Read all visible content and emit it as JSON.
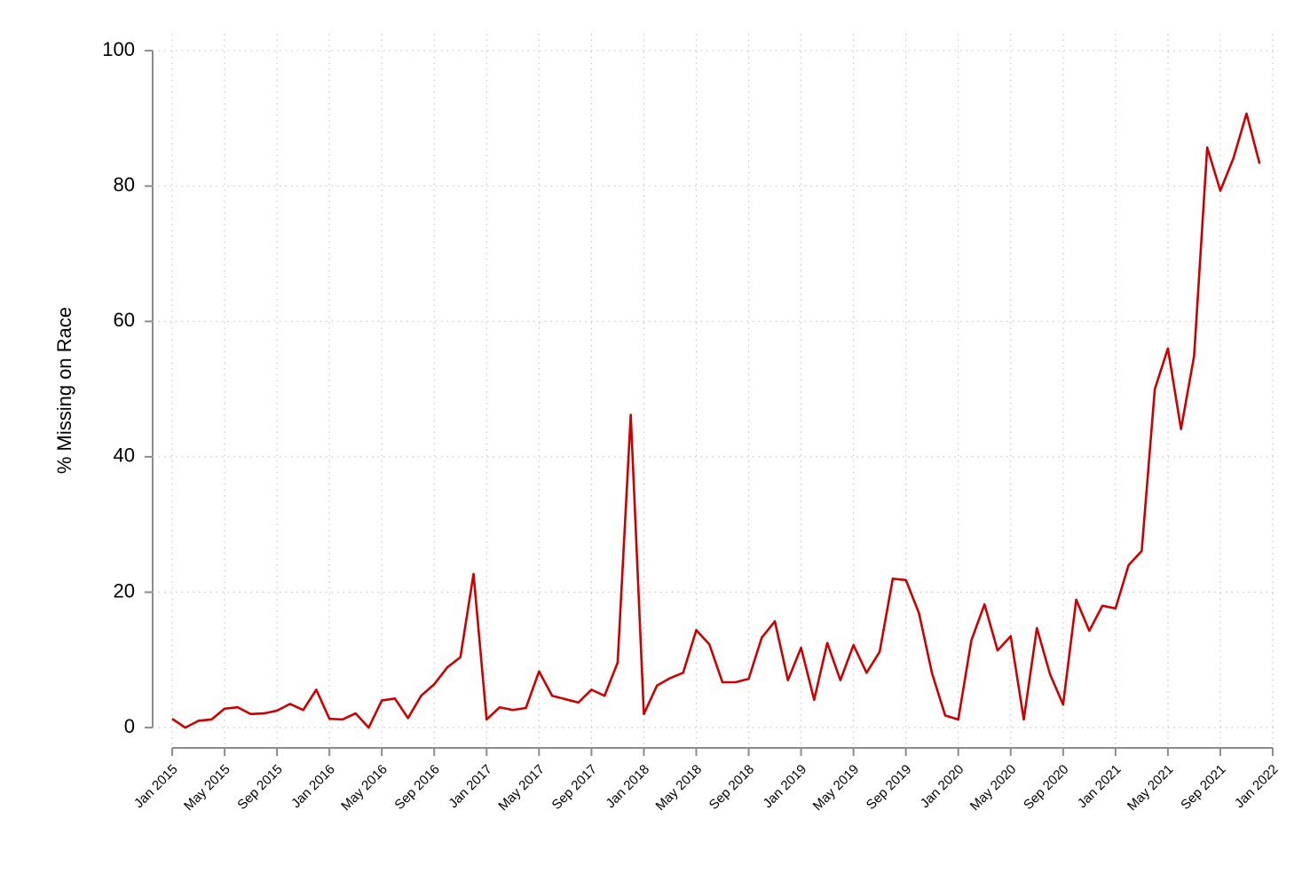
{
  "chart_data": {
    "type": "line",
    "y_label": "% Missing on Race",
    "categories": [
      "Jan 2015",
      null,
      null,
      null,
      "May 2015",
      null,
      null,
      null,
      "Sep 2015",
      null,
      null,
      null,
      "Jan 2016",
      null,
      null,
      null,
      "May 2016",
      null,
      null,
      null,
      "Sep 2016",
      null,
      null,
      null,
      "Jan 2017",
      null,
      null,
      null,
      "May 2017",
      null,
      null,
      null,
      "Sep 2017",
      null,
      null,
      null,
      "Jan 2018",
      null,
      null,
      null,
      "May 2018",
      null,
      null,
      null,
      "Sep 2018",
      null,
      null,
      null,
      "Jan 2019",
      null,
      null,
      null,
      "May 2019",
      null,
      null,
      null,
      "Sep 2019",
      null,
      null,
      null,
      "Jan 2020",
      null,
      null,
      null,
      "May 2020",
      null,
      null,
      null,
      "Sep 2020",
      null,
      null,
      null,
      "Jan 2021",
      null,
      null,
      null,
      "May 2021",
      null,
      null,
      null,
      "Sep 2021",
      null,
      null,
      null,
      "Jan 2022"
    ],
    "series": [
      {
        "color": "#cc0000",
        "values": [
          1.3,
          0,
          1.0,
          1.2,
          2.8,
          3.0,
          2.0,
          2.1,
          2.5,
          3.5,
          2.6,
          5.6,
          1.3,
          1.2,
          2.1,
          0,
          4.0,
          4.3,
          1.4,
          4.7,
          6.4,
          8.9,
          10.4,
          22.7,
          1.2,
          3.0,
          2.6,
          2.9,
          8.3,
          4.7,
          4.2,
          3.7,
          5.6,
          4.7,
          9.6,
          46.2,
          2.0,
          6.2,
          7.3,
          8.1,
          14.4,
          12.3,
          6.7,
          6.7,
          7.2,
          13.3,
          15.7,
          7.0,
          11.8,
          4.1,
          12.5,
          7.0,
          12.2,
          8.1,
          11.2,
          22.0,
          21.8,
          16.9,
          8.0,
          1.8,
          1.2,
          12.9,
          18.2,
          11.4,
          13.5,
          1.2,
          14.7,
          7.9,
          3.4,
          18.9,
          14.3,
          18.0,
          17.6,
          24.0,
          26.1,
          50.0,
          56.0,
          44.1,
          54.9,
          85.7,
          79.3,
          84.1,
          90.7,
          83.3,
          null
        ]
      }
    ],
    "ylim": [
      -3,
      102.5
    ],
    "yticks": [
      0,
      20,
      40,
      60,
      80,
      100
    ],
    "grid": true
  }
}
